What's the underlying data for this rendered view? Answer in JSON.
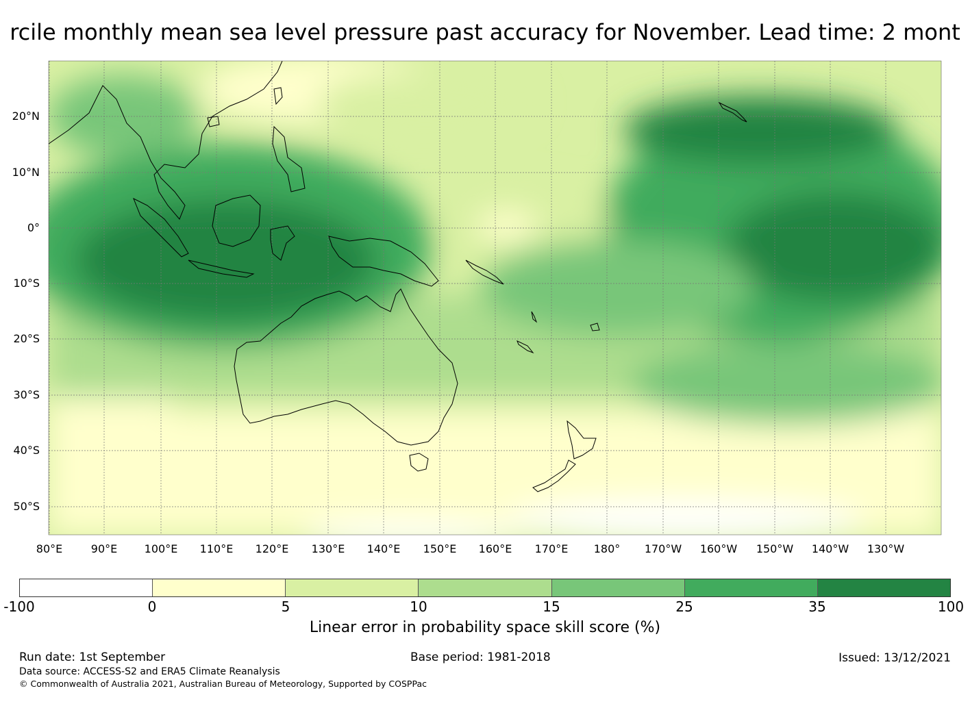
{
  "title": "rcile monthly mean sea level pressure past accuracy for November. Lead time: 2 mont",
  "map": {
    "lat_labels": [
      "20°N",
      "10°N",
      "0°",
      "10°S",
      "20°S",
      "30°S",
      "40°S",
      "50°S"
    ],
    "lon_labels": [
      "80°E",
      "90°E",
      "100°E",
      "110°E",
      "120°E",
      "130°E",
      "140°E",
      "150°E",
      "160°E",
      "170°E",
      "180°",
      "170°W",
      "160°W",
      "150°W",
      "140°W",
      "130°W"
    ],
    "lat_range": [
      -55,
      30
    ],
    "lon_range": [
      80,
      240
    ],
    "grid": true
  },
  "colorbar": {
    "ticks": [
      "-100",
      "0",
      "5",
      "10",
      "15",
      "25",
      "35",
      "100"
    ],
    "colors": [
      "#ffffff",
      "#ffffcc",
      "#d9f0a3",
      "#addd8e",
      "#78c679",
      "#41ab5d",
      "#238443"
    ],
    "label": "Linear error in probability space skill score (%)"
  },
  "footer": {
    "run_date": "Run date: 1st September",
    "base_period": "Base period: 1981-2018",
    "issued": "Issued: 13/12/2021",
    "data_source": "Data source: ACCESS-S2 and ERA5 Climate Reanalysis",
    "copyright": "© Commonwealth of Australia 2021, Australian Bureau of Meteorology, Supported by COSPPac"
  }
}
